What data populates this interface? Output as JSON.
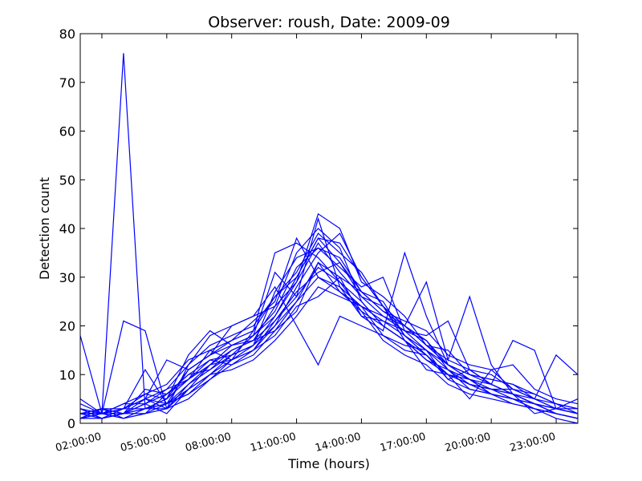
{
  "chart_data": {
    "type": "line",
    "title": "Observer: roush, Date: 2009-09",
    "xlabel": "Time (hours)",
    "ylabel": "Detection count",
    "x_unit": "hour of day",
    "x": [
      1,
      2,
      3,
      4,
      5,
      6,
      7,
      8,
      9,
      10,
      11,
      12,
      13,
      14,
      15,
      16,
      17,
      18,
      19,
      20,
      21,
      22,
      23,
      24
    ],
    "xlim": [
      1,
      24
    ],
    "ylim": [
      0,
      80
    ],
    "xticks": [
      "02:00:00",
      "05:00:00",
      "08:00:00",
      "11:00:00",
      "14:00:00",
      "17:00:00",
      "20:00:00",
      "23:00:00"
    ],
    "yticks": [
      "0",
      "10",
      "20",
      "30",
      "40",
      "50",
      "60",
      "70",
      "80"
    ],
    "grid": false,
    "legend": "none",
    "color": "#0000ff",
    "series": [
      {
        "values": [
          18,
          2,
          76,
          3,
          4,
          6,
          10,
          14,
          16,
          22,
          30,
          38,
          33,
          26,
          22,
          19,
          15,
          11,
          8,
          7,
          6,
          4,
          3,
          2
        ]
      },
      {
        "values": [
          3,
          2,
          21,
          19,
          3,
          5,
          9,
          13,
          15,
          20,
          28,
          35,
          39,
          30,
          24,
          18,
          14,
          10,
          9,
          6,
          5,
          4,
          2,
          1
        ]
      },
      {
        "values": [
          2,
          1,
          3,
          11,
          4,
          7,
          12,
          15,
          17,
          19,
          25,
          33,
          30,
          27,
          23,
          20,
          17,
          12,
          9,
          8,
          6,
          5,
          3,
          2
        ]
      },
      {
        "values": [
          1,
          3,
          2,
          5,
          13,
          11,
          14,
          20,
          22,
          24,
          35,
          40,
          36,
          25,
          20,
          17,
          13,
          11,
          7,
          6,
          5,
          3,
          2,
          1
        ]
      },
      {
        "values": [
          2,
          2,
          4,
          6,
          5,
          14,
          19,
          16,
          18,
          31,
          26,
          42,
          28,
          22,
          19,
          35,
          22,
          12,
          10,
          9,
          8,
          6,
          4,
          3
        ]
      },
      {
        "values": [
          3,
          1,
          2,
          4,
          7,
          9,
          15,
          17,
          21,
          25,
          38,
          30,
          27,
          24,
          18,
          15,
          14,
          10,
          8,
          7,
          5,
          4,
          3,
          2
        ]
      },
      {
        "values": [
          1,
          2,
          3,
          3,
          4,
          8,
          12,
          13,
          16,
          27,
          34,
          36,
          32,
          28,
          30,
          19,
          18,
          21,
          11,
          10,
          7,
          6,
          4,
          2
        ]
      },
      {
        "values": [
          2,
          3,
          1,
          2,
          6,
          10,
          11,
          14,
          18,
          22,
          29,
          43,
          40,
          29,
          26,
          22,
          16,
          15,
          10,
          9,
          8,
          5,
          3,
          3
        ]
      },
      {
        "values": [
          4,
          2,
          3,
          5,
          3,
          12,
          16,
          18,
          20,
          26,
          31,
          39,
          35,
          31,
          24,
          20,
          29,
          13,
          26,
          12,
          6,
          4,
          2,
          1
        ]
      },
      {
        "values": [
          2,
          1,
          2,
          7,
          6,
          9,
          13,
          12,
          15,
          18,
          24,
          26,
          30,
          22,
          21,
          18,
          14,
          9,
          11,
          8,
          17,
          15,
          3,
          2
        ]
      },
      {
        "values": [
          1,
          2,
          2,
          3,
          5,
          11,
          14,
          16,
          17,
          21,
          27,
          31,
          33,
          27,
          23,
          21,
          19,
          14,
          12,
          11,
          7,
          5,
          14,
          10
        ]
      },
      {
        "values": [
          3,
          2,
          4,
          4,
          2,
          7,
          10,
          11,
          13,
          17,
          22,
          28,
          26,
          24,
          22,
          20,
          16,
          12,
          10,
          8,
          6,
          4,
          2,
          1
        ]
      },
      {
        "values": [
          2,
          3,
          3,
          6,
          8,
          13,
          15,
          13,
          19,
          35,
          37,
          34,
          29,
          25,
          20,
          17,
          11,
          10,
          5,
          11,
          12,
          7,
          5,
          4
        ]
      },
      {
        "values": [
          1,
          1,
          2,
          2,
          4,
          6,
          9,
          12,
          14,
          19,
          23,
          33,
          27,
          23,
          17,
          14,
          12,
          8,
          6,
          5,
          4,
          3,
          1,
          0
        ]
      },
      {
        "values": [
          5,
          2,
          3,
          5,
          7,
          12,
          18,
          20,
          22,
          28,
          20,
          12,
          22,
          20,
          18,
          16,
          15,
          9,
          7,
          6,
          5,
          4,
          3,
          5
        ]
      },
      {
        "values": [
          2,
          2,
          1,
          3,
          3,
          8,
          11,
          15,
          17,
          24,
          29,
          37,
          31,
          26,
          24,
          17,
          13,
          10,
          8,
          7,
          6,
          2,
          3,
          2
        ]
      },
      {
        "values": [
          1,
          3,
          2,
          4,
          6,
          10,
          13,
          14,
          16,
          20,
          25,
          30,
          28,
          24,
          21,
          19,
          17,
          11,
          9,
          6,
          4,
          3,
          2,
          1
        ]
      },
      {
        "values": [
          3,
          1,
          2,
          3,
          5,
          9,
          12,
          16,
          18,
          23,
          32,
          36,
          34,
          27,
          25,
          18,
          15,
          12,
          9,
          7,
          7,
          5,
          4,
          3
        ]
      },
      {
        "values": [
          2,
          2,
          3,
          5,
          4,
          11,
          14,
          17,
          19,
          26,
          30,
          38,
          37,
          30,
          24,
          20,
          16,
          13,
          11,
          8,
          6,
          4,
          2,
          1
        ]
      },
      {
        "values": [
          1,
          2,
          1,
          2,
          3,
          7,
          10,
          13,
          15,
          21,
          26,
          32,
          29,
          23,
          20,
          17,
          14,
          10,
          8,
          6,
          5,
          3,
          2,
          1
        ]
      }
    ]
  }
}
